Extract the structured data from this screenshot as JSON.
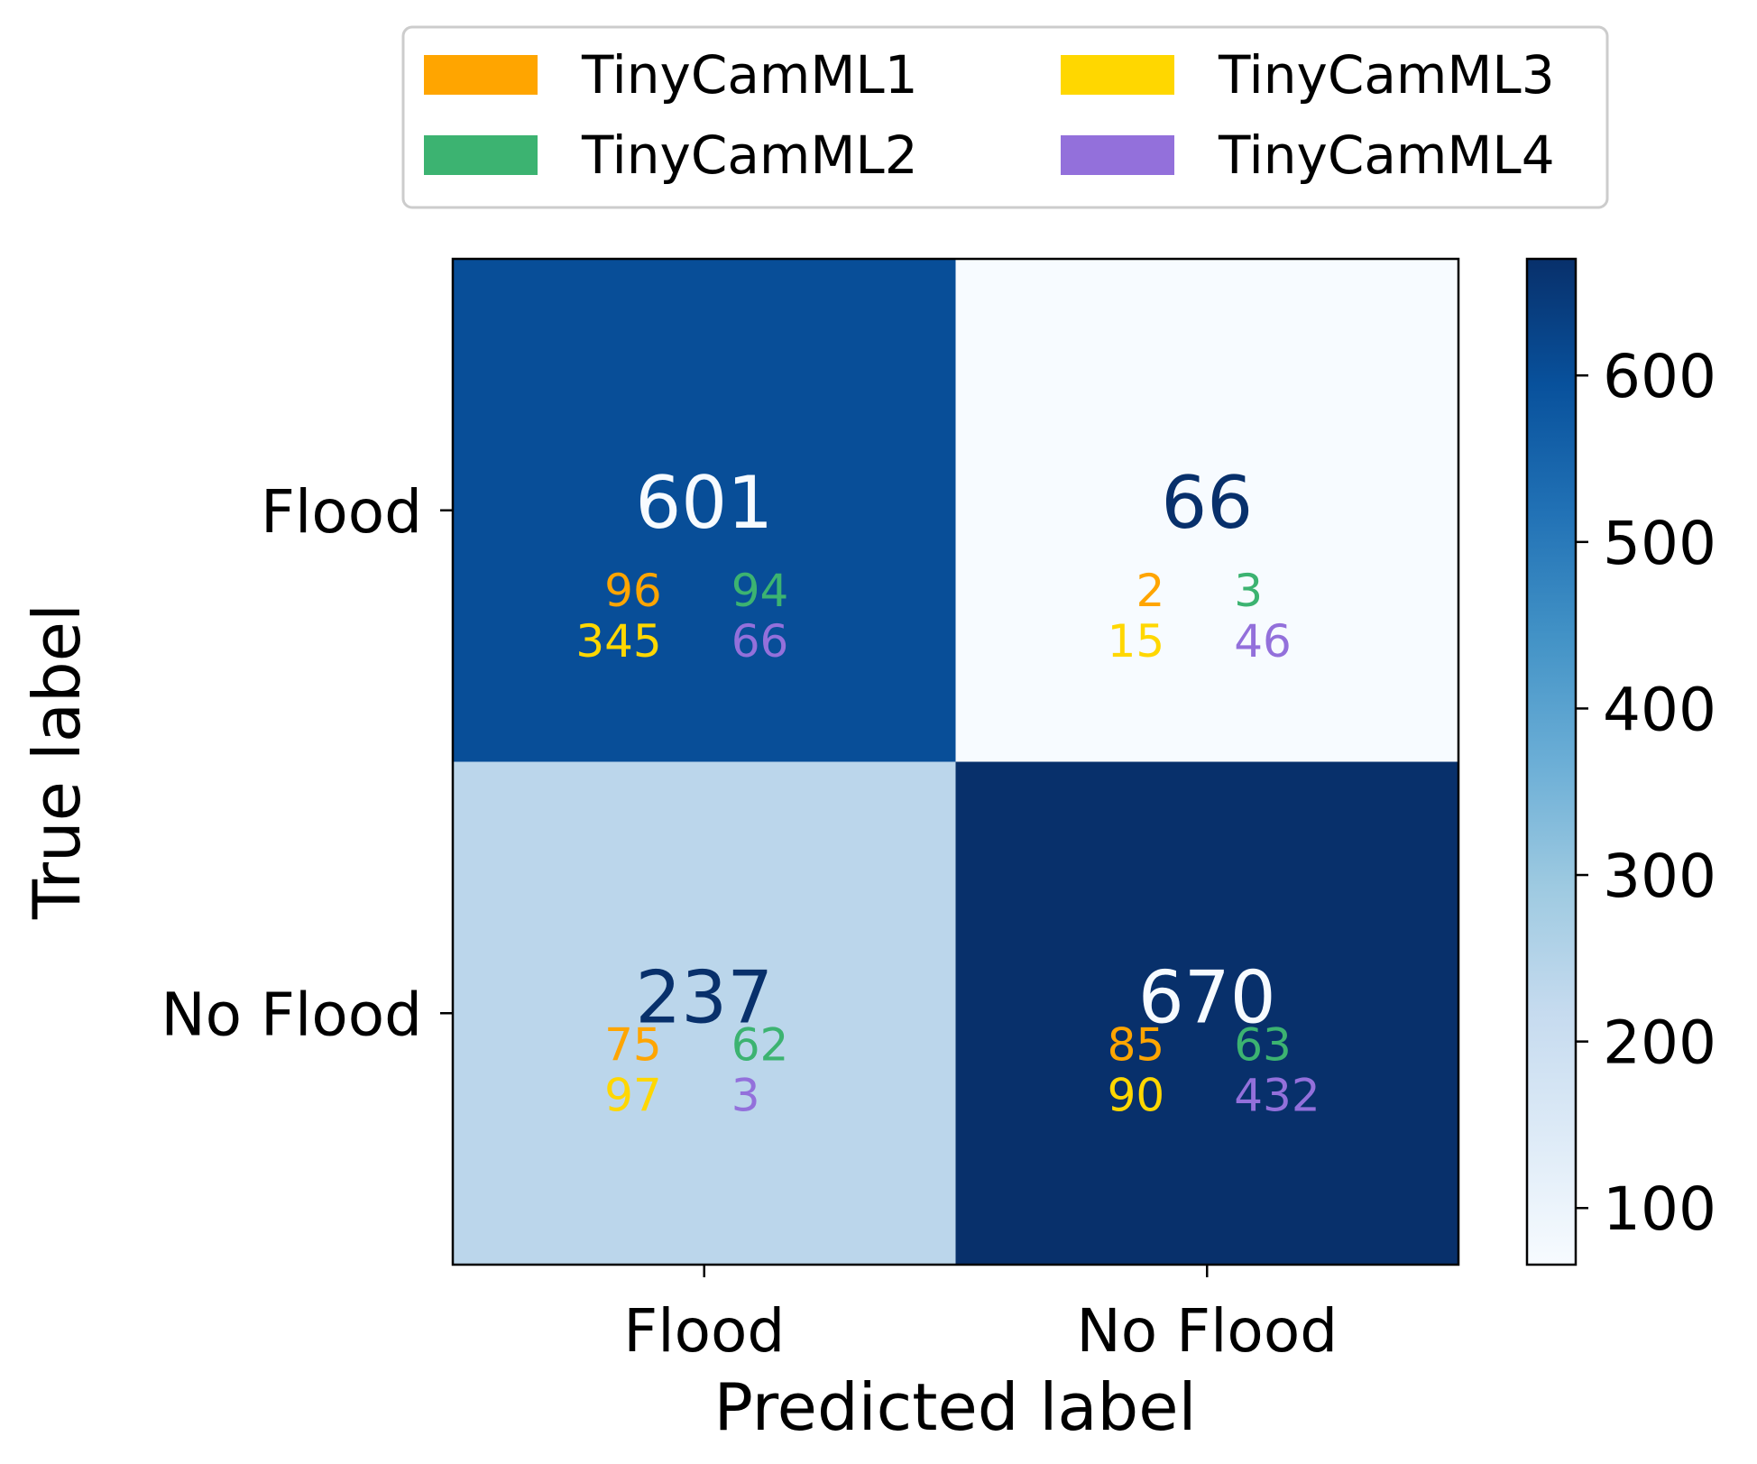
{
  "chart_data": {
    "type": "heatmap",
    "xlabel": "Predicted label",
    "ylabel": "True label",
    "x_categories": [
      "Flood",
      "No Flood"
    ],
    "y_categories": [
      "Flood",
      "No Flood"
    ],
    "matrix": [
      [
        601,
        66
      ],
      [
        237,
        670
      ]
    ],
    "colormap": "Blues",
    "color_range": [
      66,
      670
    ],
    "colorbar_ticks": [
      100,
      200,
      300,
      400,
      500,
      600
    ],
    "legend": {
      "placement": "top-center",
      "entries": [
        {
          "name": "TinyCamML1",
          "color": "#FFA500"
        },
        {
          "name": "TinyCamML2",
          "color": "#3CB371"
        },
        {
          "name": "TinyCamML3",
          "color": "#FFD700"
        },
        {
          "name": "TinyCamML4",
          "color": "#9370DB"
        }
      ]
    },
    "per_model_counts": [
      [
        {
          "TinyCamML1": 96,
          "TinyCamML2": 94,
          "TinyCamML3": 345,
          "TinyCamML4": 66
        },
        {
          "TinyCamML1": 2,
          "TinyCamML2": 3,
          "TinyCamML3": 15,
          "TinyCamML4": 46
        }
      ],
      [
        {
          "TinyCamML1": 75,
          "TinyCamML2": 62,
          "TinyCamML3": 97,
          "TinyCamML4": 3
        },
        {
          "TinyCamML1": 85,
          "TinyCamML2": 63,
          "TinyCamML3": 90,
          "TinyCamML4": 432
        }
      ]
    ]
  }
}
